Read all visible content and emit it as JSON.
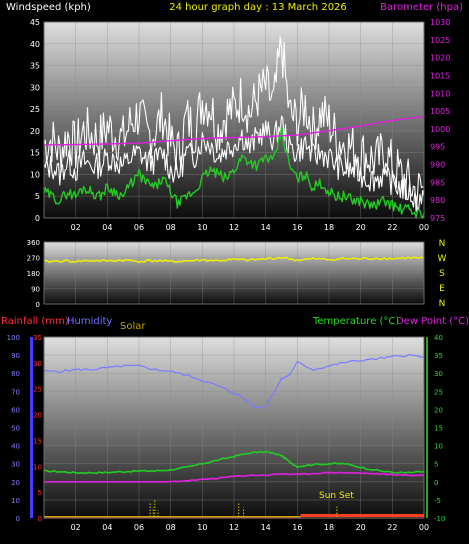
{
  "header": {
    "windspeed_label": "Windspeed (kph)",
    "title": "24 hour graph day : 13 March 2026",
    "barometer_label": "Barometer (hpa)"
  },
  "sunset_label": "Sun Set",
  "colors": {
    "wind": "#ffffff",
    "gust": "#ffffff",
    "wind_avg": "#22cc22",
    "barometer": "#e020e0",
    "direction": "#f0f000",
    "humidity": "#7a7aff",
    "temperature": "#22cc22",
    "dewpoint": "#e020e0",
    "rainfall": "#ff2020",
    "solar": "#d4c400",
    "sunset": "#ff4020",
    "header_title": "#f0f000",
    "temp_axis": "#22dd22",
    "rain_axis": "#ff3030",
    "humidity_axis": "#7070ff"
  },
  "chart_data": [
    {
      "type": "line",
      "name": "wind",
      "x_ticks": [
        "02",
        "04",
        "06",
        "08",
        "10",
        "12",
        "14",
        "16",
        "18",
        "20",
        "22",
        "00"
      ],
      "y_left": {
        "label": "Windspeed (kph)",
        "ticks": [
          "0",
          "5",
          "10",
          "15",
          "20",
          "25",
          "30",
          "35",
          "40",
          "45"
        ],
        "range": [
          0,
          45
        ]
      },
      "y_right": {
        "label": "Barometer (hpa)",
        "ticks": [
          "975",
          "980",
          "985",
          "990",
          "995",
          "1000",
          "1005",
          "1010",
          "1015",
          "1020",
          "1025",
          "1030"
        ],
        "range": [
          975,
          1030
        ]
      },
      "grid": true,
      "series": [
        {
          "key": "gust",
          "hours": [
            0,
            0.5,
            1,
            1.5,
            2,
            2.5,
            3,
            3.5,
            4,
            4.5,
            5,
            5.5,
            6,
            6.5,
            7,
            7.5,
            8,
            8.5,
            9,
            9.5,
            10,
            10.5,
            11,
            11.5,
            12,
            12.5,
            13,
            13.5,
            14,
            14.5,
            15,
            15.5,
            16,
            16.5,
            17,
            17.5,
            18,
            18.5,
            19,
            19.5,
            20,
            20.5,
            21,
            21.5,
            22,
            22.5,
            23,
            23.5,
            24
          ],
          "values": [
            17,
            18,
            15,
            19,
            16,
            20,
            19,
            18,
            21,
            19,
            18,
            22,
            24,
            19,
            20,
            24,
            17,
            15,
            23,
            20,
            27,
            26,
            20,
            24,
            25,
            28,
            24,
            28,
            30,
            26,
            40,
            24,
            22,
            26,
            20,
            24,
            22,
            18,
            17,
            16,
            15,
            14,
            13,
            15,
            12,
            10,
            8,
            6,
            7
          ]
        },
        {
          "key": "wind",
          "hours": [
            0,
            0.5,
            1,
            1.5,
            2,
            2.5,
            3,
            3.5,
            4,
            4.5,
            5,
            5.5,
            6,
            6.5,
            7,
            7.5,
            8,
            8.5,
            9,
            9.5,
            10,
            10.5,
            11,
            11.5,
            12,
            12.5,
            13,
            13.5,
            14,
            14.5,
            15,
            15.5,
            16,
            16.5,
            17,
            17.5,
            18,
            18.5,
            19,
            19.5,
            20,
            20.5,
            21,
            21.5,
            22,
            22.5,
            23,
            23.5,
            24
          ],
          "values": [
            11,
            12,
            10,
            13,
            11,
            13,
            12,
            12,
            14,
            13,
            12,
            14,
            15,
            13,
            13,
            15,
            11,
            10,
            15,
            14,
            18,
            17,
            14,
            16,
            17,
            19,
            16,
            19,
            20,
            18,
            22,
            16,
            15,
            17,
            14,
            15,
            14,
            12,
            11,
            11,
            10,
            9,
            9,
            10,
            8,
            7,
            6,
            4,
            5
          ]
        },
        {
          "key": "wind_avg",
          "hours": [
            0,
            0.5,
            1,
            1.5,
            2,
            2.5,
            3,
            3.5,
            4,
            4.5,
            5,
            5.5,
            6,
            6.5,
            7,
            7.5,
            8,
            8.5,
            9,
            9.5,
            10,
            10.5,
            11,
            11.5,
            12,
            12.5,
            13,
            13.5,
            14,
            14.5,
            15,
            15.5,
            16,
            16.5,
            17,
            17.5,
            18,
            18.5,
            19,
            19.5,
            20,
            20.5,
            21,
            21.5,
            22,
            22.5,
            23,
            23.5,
            24
          ],
          "values": [
            6,
            5,
            4,
            6,
            5,
            7,
            6,
            5,
            7,
            6,
            5,
            8,
            10,
            8,
            7,
            9,
            6,
            3,
            5,
            6,
            9,
            11,
            10,
            9,
            11,
            14,
            13,
            12,
            14,
            13,
            20,
            12,
            9,
            10,
            7,
            8,
            6,
            5,
            5,
            4,
            4,
            3,
            3,
            4,
            3,
            2,
            2,
            1,
            1
          ]
        },
        {
          "key": "barometer",
          "axis": "right",
          "hours": [
            0,
            2,
            4,
            6,
            8,
            10,
            12,
            14,
            16,
            18,
            20,
            22,
            24
          ],
          "values": [
            995.5,
            995.6,
            995.8,
            996,
            996.7,
            997.3,
            997.6,
            997.8,
            998.3,
            999.5,
            1000.8,
            1002.4,
            1003.5
          ]
        }
      ]
    },
    {
      "type": "line",
      "name": "direction",
      "y_left": {
        "ticks": [
          "0",
          "90",
          "180",
          "270",
          "360"
        ],
        "range": [
          0,
          360
        ]
      },
      "y_right": {
        "ticks": [
          "N",
          "W",
          "S",
          "E",
          "N"
        ]
      },
      "grid": true,
      "series": [
        {
          "key": "direction",
          "hours": [
            0,
            1,
            2,
            3,
            4,
            5,
            6,
            7,
            8,
            9,
            10,
            11,
            12,
            13,
            14,
            15,
            16,
            17,
            18,
            19,
            20,
            21,
            22,
            23,
            24
          ],
          "values": [
            245,
            250,
            248,
            252,
            250,
            255,
            248,
            252,
            246,
            250,
            255,
            252,
            258,
            255,
            262,
            270,
            255,
            262,
            258,
            264,
            262,
            266,
            264,
            268,
            266
          ]
        }
      ]
    },
    {
      "type": "line",
      "name": "climate",
      "x_ticks": [
        "02",
        "04",
        "06",
        "08",
        "10",
        "12",
        "14",
        "16",
        "18",
        "20",
        "22",
        "00"
      ],
      "legend": {
        "rainfall": "Rainfall (mm)",
        "humidity": "Humidity",
        "solar": "Solar",
        "temperature": "Temperature (°C)",
        "dewpoint": "Dew Point (°C)"
      },
      "y_rain": {
        "ticks": [
          "0",
          "5",
          "10",
          "15",
          "20",
          "25",
          "30",
          "35"
        ],
        "range": [
          0,
          35
        ]
      },
      "y_humidity": {
        "ticks": [
          "0",
          "10",
          "20",
          "30",
          "40",
          "50",
          "60",
          "70",
          "80",
          "90",
          "100"
        ],
        "range": [
          0,
          100
        ]
      },
      "y_temp": {
        "ticks": [
          "-10",
          "-5",
          "0",
          "5",
          "10",
          "15",
          "20",
          "25",
          "30",
          "35",
          "40"
        ],
        "range": [
          -10,
          40
        ]
      },
      "grid": true,
      "series": [
        {
          "key": "humidity",
          "hours": [
            0,
            1,
            2,
            3,
            4,
            5,
            6,
            7,
            8,
            9,
            10,
            11,
            12,
            12.5,
            13,
            13.5,
            14,
            14.5,
            15,
            15.5,
            16,
            17,
            18,
            19,
            20,
            21,
            22,
            23,
            24
          ],
          "values": [
            81,
            81,
            82,
            82,
            83,
            84,
            84,
            82,
            81,
            79,
            76,
            73,
            69,
            67,
            63,
            61,
            62,
            69,
            77,
            79,
            86,
            82,
            84,
            86,
            87,
            88,
            89,
            90,
            89
          ]
        },
        {
          "key": "temperature",
          "hours": [
            0,
            1,
            2,
            3,
            4,
            5,
            6,
            7,
            8,
            9,
            10,
            11,
            12,
            13,
            14,
            15,
            15.5,
            16,
            17,
            18,
            19,
            20,
            21,
            22,
            23,
            24
          ],
          "values": [
            3,
            2.8,
            2.5,
            2.5,
            2.6,
            2.8,
            3,
            3,
            3.3,
            4,
            5,
            6,
            7,
            8,
            8.3,
            7.3,
            5.5,
            4.2,
            4.8,
            5,
            5,
            4,
            3.2,
            2.6,
            2.5,
            2.8
          ]
        },
        {
          "key": "dewpoint",
          "hours": [
            0,
            1,
            2,
            3,
            4,
            5,
            6,
            7,
            8,
            9,
            10,
            11,
            12,
            13,
            14,
            15,
            16,
            17,
            18,
            19,
            20,
            21,
            22,
            23,
            24
          ],
          "values": [
            -0.5,
            -0.8,
            -1,
            -1,
            -1,
            -0.8,
            -0.5,
            -0.2,
            0,
            0.3,
            0.6,
            1,
            1.5,
            1.8,
            1.8,
            2.2,
            2,
            2.3,
            2.5,
            2.5,
            2.4,
            2.2,
            2,
            1.8,
            1.8
          ]
        },
        {
          "key": "rainfall",
          "hours": [
            0,
            24
          ],
          "values": [
            0,
            0
          ]
        },
        {
          "key": "solar",
          "hours": [
            6.7,
            6.9,
            7.0,
            7.2,
            12.3,
            12.6,
            18.5
          ],
          "values": [
            3,
            2,
            3.6,
            1.5,
            3,
            2,
            2.5
          ]
        }
      ]
    }
  ]
}
